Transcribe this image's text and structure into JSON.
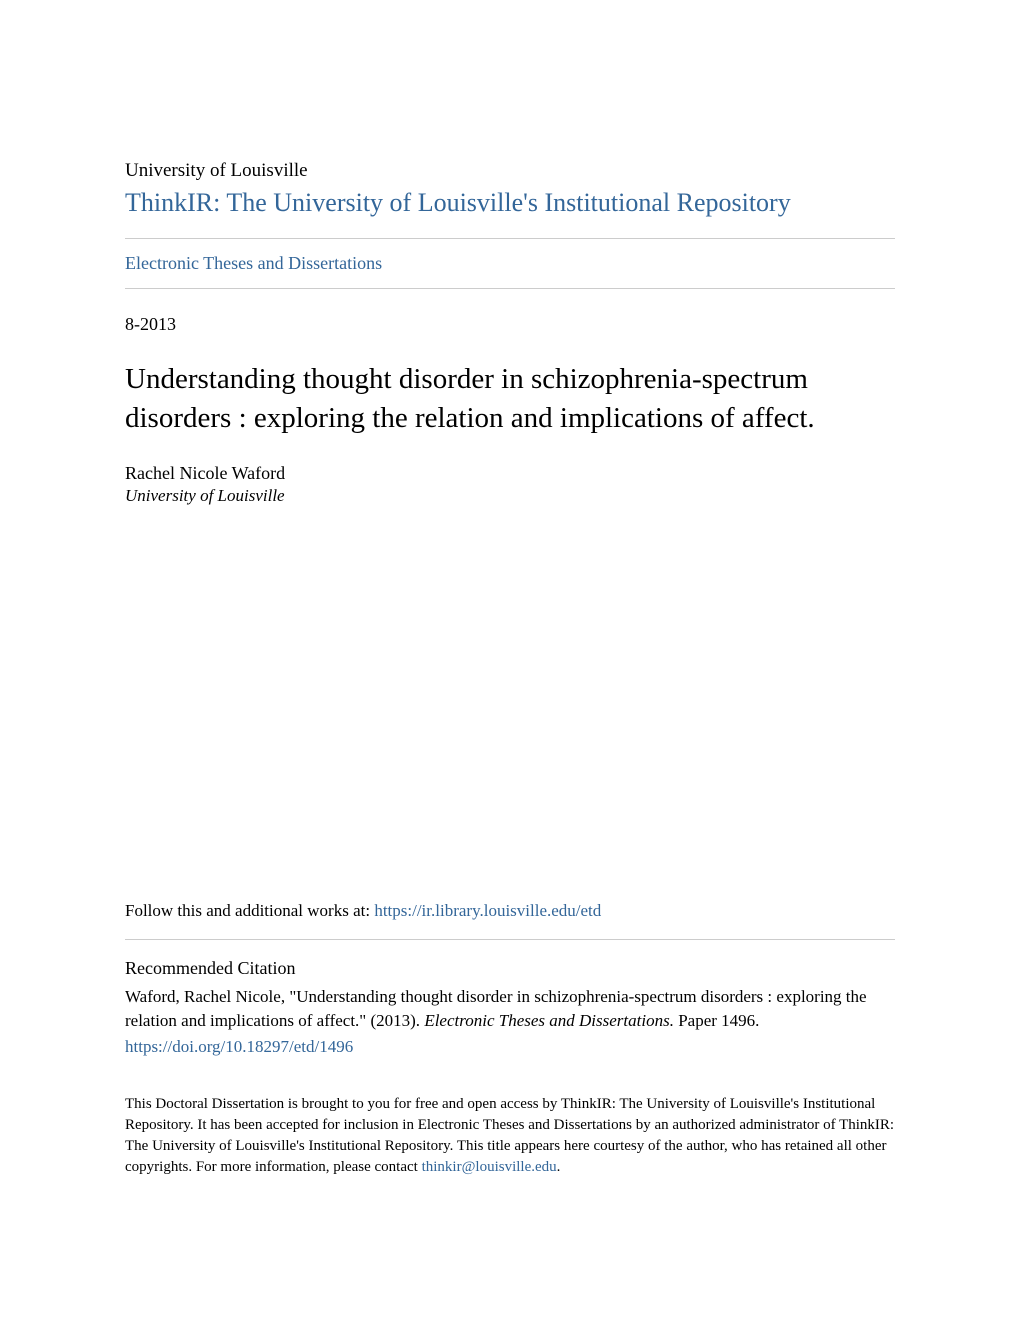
{
  "header": {
    "university": "University of Louisville",
    "repository": "ThinkIR: The University of Louisville's Institutional Repository",
    "collection": "Electronic Theses and Dissertations"
  },
  "paper": {
    "date": "8-2013",
    "title": "Understanding thought disorder in schizophrenia-spectrum disorders : exploring the relation and implications of affect.",
    "author_name": "Rachel Nicole Waford",
    "author_affiliation": "University of Louisville"
  },
  "follow": {
    "prefix": "Follow this and additional works at: ",
    "url": "https://ir.library.louisville.edu/etd"
  },
  "citation": {
    "heading": "Recommended Citation",
    "text_part1": "Waford, Rachel Nicole, \"Understanding thought disorder in schizophrenia-spectrum disorders : exploring the relation and implications of affect.\" (2013). ",
    "text_italic": "Electronic Theses and Dissertations.",
    "text_part2": " Paper 1496.",
    "doi": "https://doi.org/10.18297/etd/1496"
  },
  "footer": {
    "text_part1": "This Doctoral Dissertation is brought to you for free and open access by ThinkIR: The University of Louisville's Institutional Repository. It has been accepted for inclusion in Electronic Theses and Dissertations by an authorized administrator of ThinkIR: The University of Louisville's Institutional Repository. This title appears here courtesy of the author, who has retained all other copyrights. For more information, please contact ",
    "contact": "thinkir@louisville.edu",
    "text_part2": "."
  },
  "colors": {
    "link_color": "#336699",
    "text_color": "#000000",
    "divider_color": "#cccccc",
    "background": "#ffffff"
  }
}
